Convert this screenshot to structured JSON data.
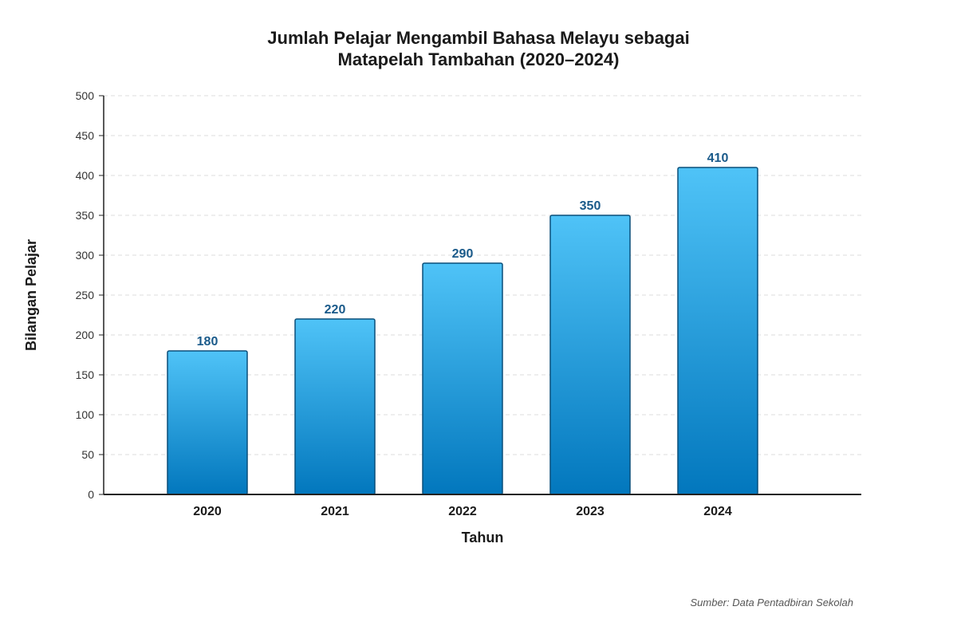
{
  "chart_data": {
    "type": "bar",
    "title_lines": [
      "Jumlah Pelajar Mengambil Bahasa Melayu sebagai",
      "Matapelah Tambahan (2020–2024)"
    ],
    "xlabel": "Tahun",
    "ylabel": "Bilangan Pelajar",
    "categories": [
      "2020",
      "2021",
      "2022",
      "2023",
      "2024"
    ],
    "values": [
      180,
      220,
      290,
      350,
      410
    ],
    "data_labels": [
      "180",
      "220",
      "290",
      "350",
      "410"
    ],
    "ylim": [
      0,
      500
    ],
    "yticks": [
      0,
      50,
      100,
      150,
      200,
      250,
      300,
      350,
      400,
      450,
      500
    ],
    "grid": true,
    "legend": "none",
    "colors": {
      "bar_top": "#4fc3f7",
      "bar_bottom": "#0277bd",
      "bar_stroke": "#0a4f7a",
      "data_label": "#1a5a8a",
      "grid": "#dddddd",
      "axis": "#222222"
    }
  },
  "source_note": "Sumber: Data Pentadbiran Sekolah"
}
